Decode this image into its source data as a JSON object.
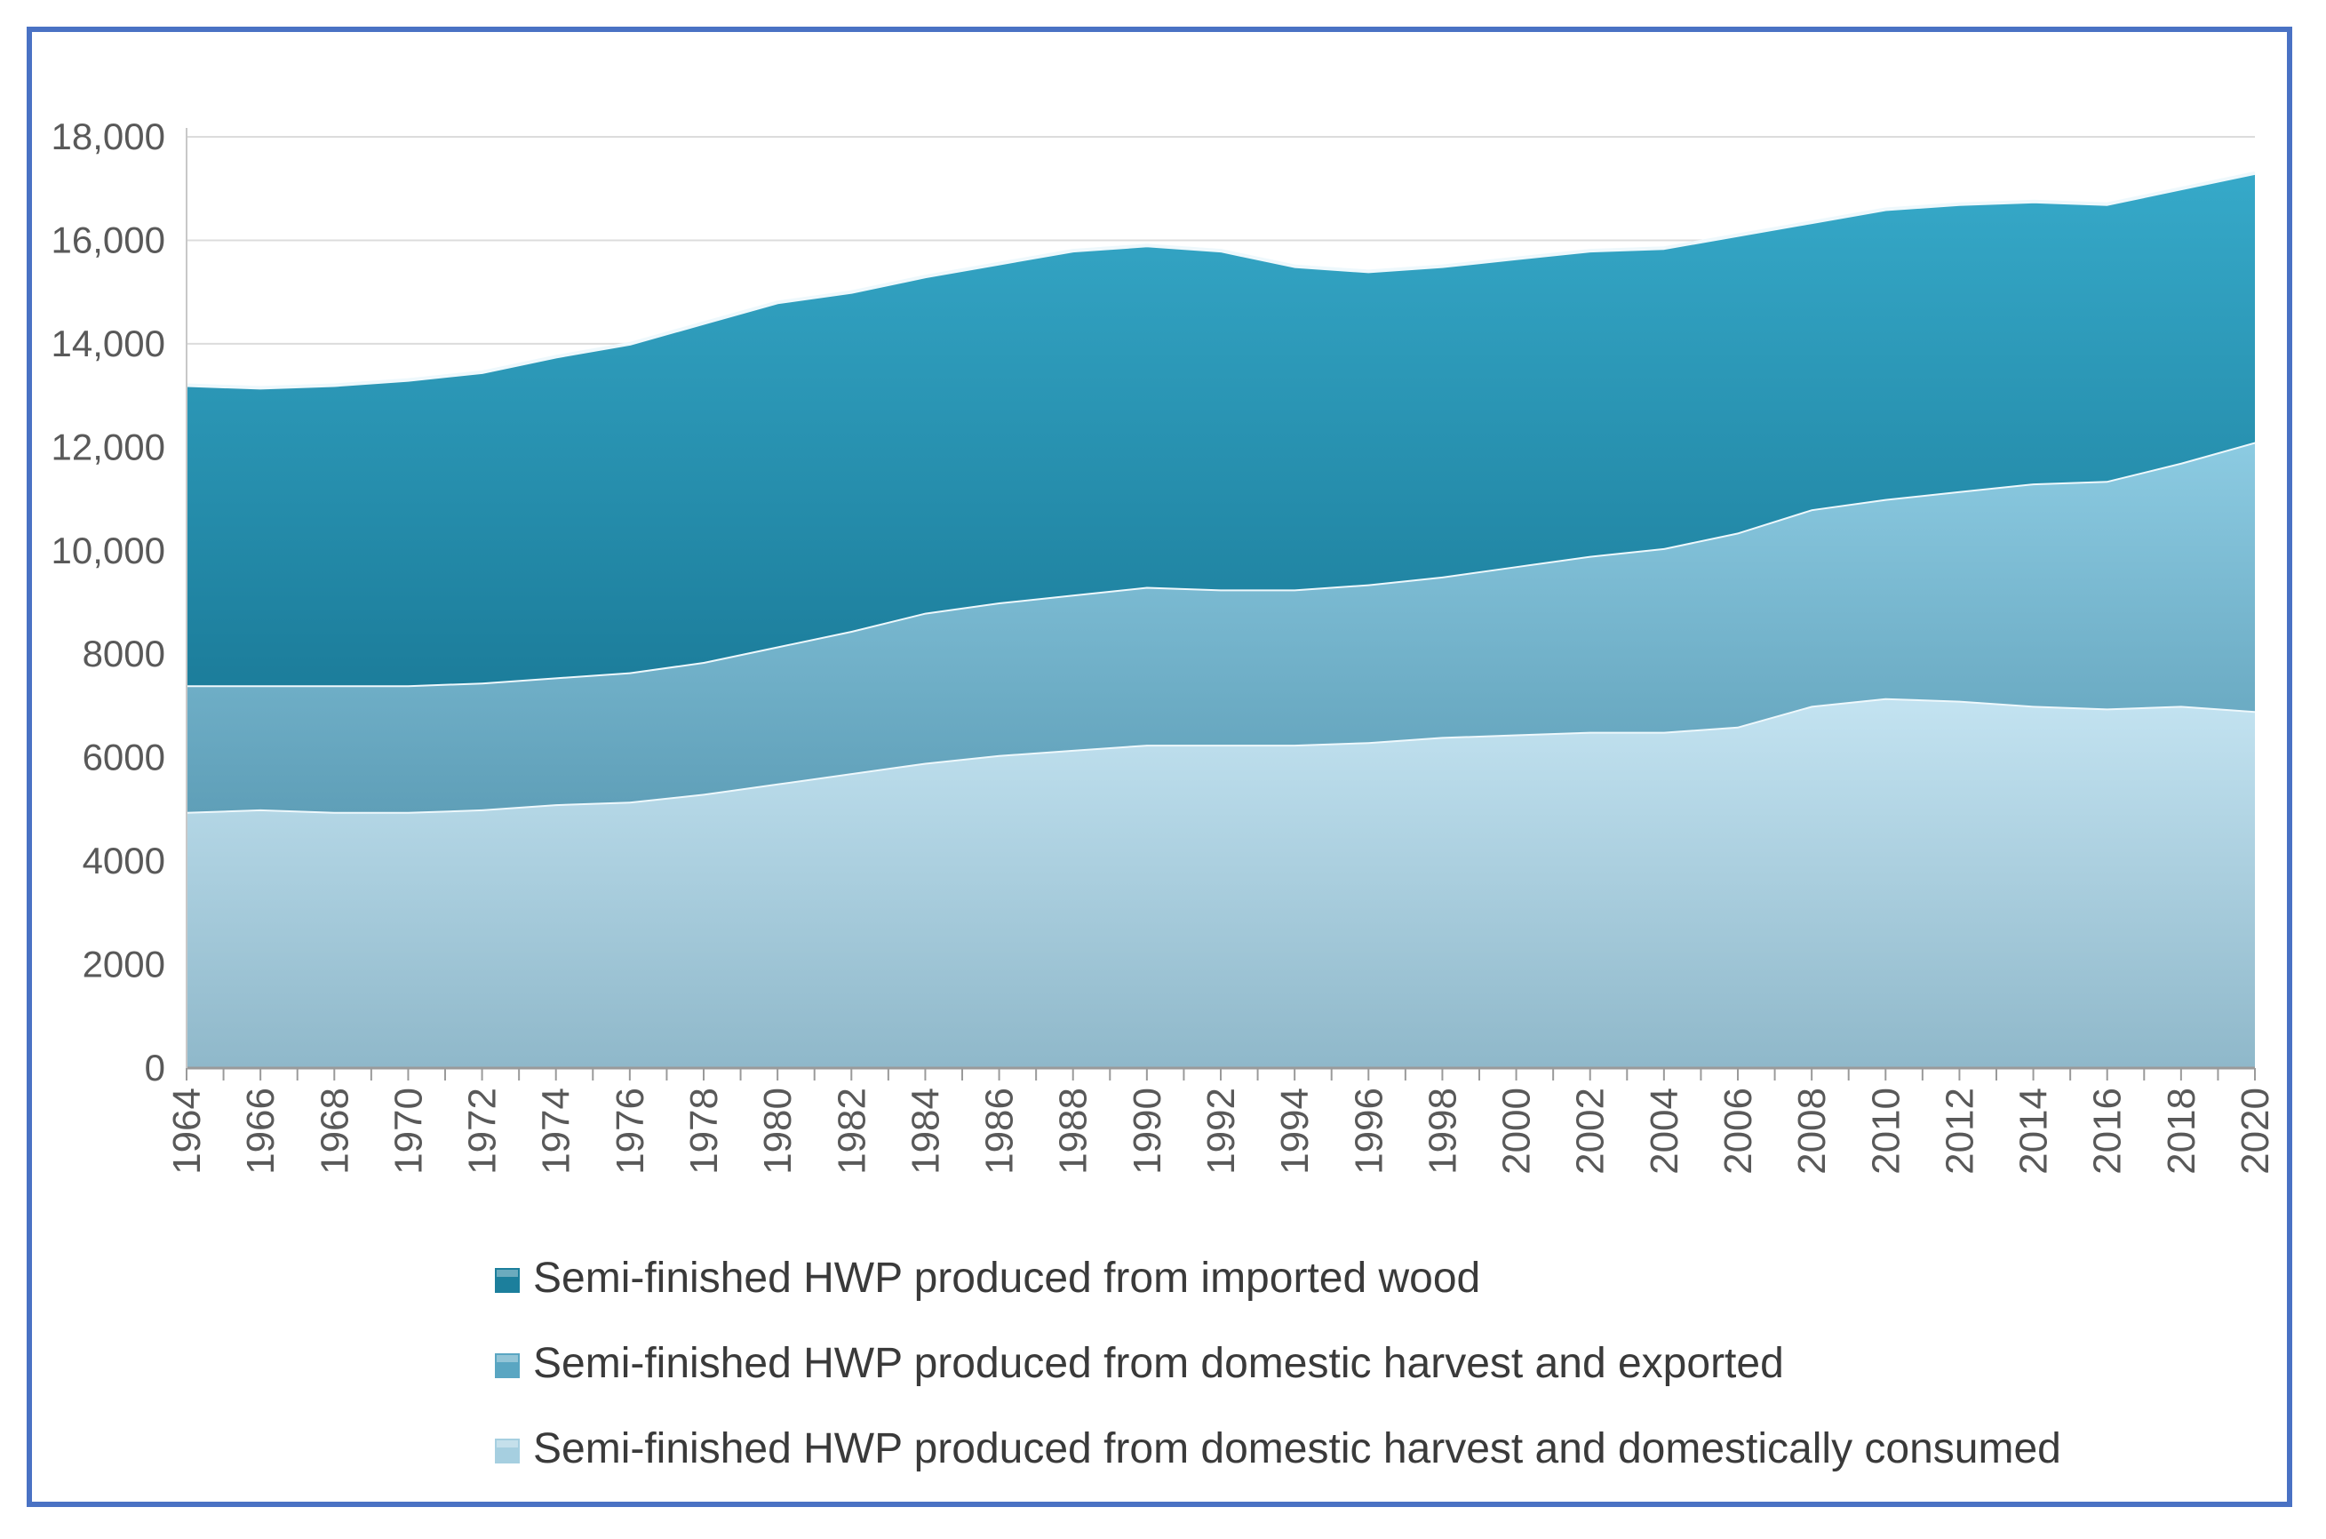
{
  "chart_data": {
    "type": "area",
    "stacked": true,
    "title": "",
    "xlabel": "",
    "ylabel": "",
    "ylim": [
      0,
      18000
    ],
    "xlim": [
      1964,
      2020
    ],
    "grid": true,
    "legend_position": "bottom",
    "y_ticks": [
      0,
      2000,
      4000,
      6000,
      8000,
      10000,
      12000,
      14000,
      16000,
      18000
    ],
    "y_tick_labels": [
      "0",
      "2000",
      "4000",
      "6000",
      "8000",
      "10,000",
      "12,000",
      "14,000",
      "16,000",
      "18,000"
    ],
    "x_tick_labels": [
      "1964",
      "1966",
      "1968",
      "1970",
      "1972",
      "1974",
      "1976",
      "1978",
      "1980",
      "1982",
      "1984",
      "1986",
      "1988",
      "1990",
      "1992",
      "1994",
      "1996",
      "1998",
      "2000",
      "2002",
      "2004",
      "2006",
      "2008",
      "2010",
      "2012",
      "2014",
      "2016",
      "2018",
      "2020"
    ],
    "x": [
      1964,
      1966,
      1968,
      1970,
      1972,
      1974,
      1976,
      1978,
      1980,
      1982,
      1984,
      1986,
      1988,
      1990,
      1992,
      1994,
      1996,
      1998,
      2000,
      2002,
      2004,
      2006,
      2008,
      2010,
      2012,
      2014,
      2016,
      2018,
      2020
    ],
    "series": [
      {
        "name": "Semi-finished HWP produced from domestic harvest and domestically consumed",
        "color": "#a9d4e6",
        "values": [
          4950,
          5000,
          4950,
          4950,
          5000,
          5100,
          5150,
          5300,
          5500,
          5700,
          5900,
          6050,
          6150,
          6250,
          6250,
          6250,
          6300,
          6400,
          6450,
          6500,
          6500,
          6600,
          7000,
          7150,
          7100,
          7000,
          6950,
          7000,
          6900
        ]
      },
      {
        "name": "Semi-finished HWP produced from domestic harvest and exported",
        "color": "#6fb3cd",
        "values": [
          2450,
          2400,
          2450,
          2450,
          2450,
          2450,
          2500,
          2550,
          2650,
          2750,
          2900,
          2950,
          3000,
          3050,
          3000,
          3000,
          3050,
          3100,
          3250,
          3400,
          3550,
          3750,
          3800,
          3850,
          4050,
          4300,
          4400,
          4700,
          5200
        ]
      },
      {
        "name": "Semi-finished HWP produced from imported wood",
        "color": "#2396b6",
        "values": [
          5800,
          5750,
          5800,
          5900,
          6000,
          6200,
          6350,
          6550,
          6650,
          6550,
          6500,
          6550,
          6650,
          6600,
          6550,
          6250,
          6050,
          6000,
          5950,
          5900,
          5800,
          5750,
          5550,
          5600,
          5550,
          5450,
          5350,
          5300,
          5200
        ]
      }
    ],
    "legend": [
      {
        "label": "Semi-finished HWP produced from imported wood",
        "swatch": "#1c7f9c"
      },
      {
        "label": "Semi-finished HWP produced from domestic harvest and exported",
        "swatch": "#5aa6c2"
      },
      {
        "label": "Semi-finished HWP produced from domestic harvest and domestically consumed",
        "swatch": "#a6cfe0"
      }
    ]
  }
}
